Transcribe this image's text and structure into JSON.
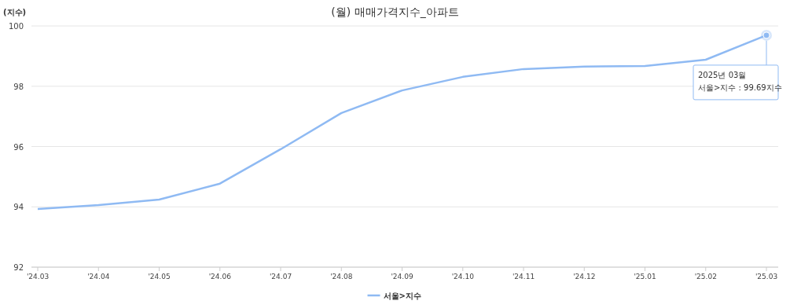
{
  "chart_data": {
    "type": "line",
    "title": "(월) 매매가격지수_아파트",
    "ylabel": "(지수)",
    "categories": [
      "'24.03",
      "'24.04",
      "'24.05",
      "'24.06",
      "'24.07",
      "'24.08",
      "'24.09",
      "'24.10",
      "'24.11",
      "'24.12",
      "'25.01",
      "'25.02",
      "'25.03"
    ],
    "series": [
      {
        "name": "서울>지수",
        "color": "#8fbaf3",
        "values": [
          93.93,
          94.06,
          94.24,
          94.77,
          95.91,
          97.11,
          97.86,
          98.31,
          98.57,
          98.65,
          98.67,
          98.88,
          99.69
        ]
      }
    ],
    "ylim": [
      92,
      100
    ],
    "yticks": [
      92,
      94,
      96,
      98,
      100
    ],
    "grid": "y",
    "legend": "bottom",
    "marker": "none",
    "annotations": [
      {
        "text": "2025년 03월\n서울>지수 : 99.69지수",
        "x": "'25.03",
        "y": 99.69
      }
    ]
  }
}
